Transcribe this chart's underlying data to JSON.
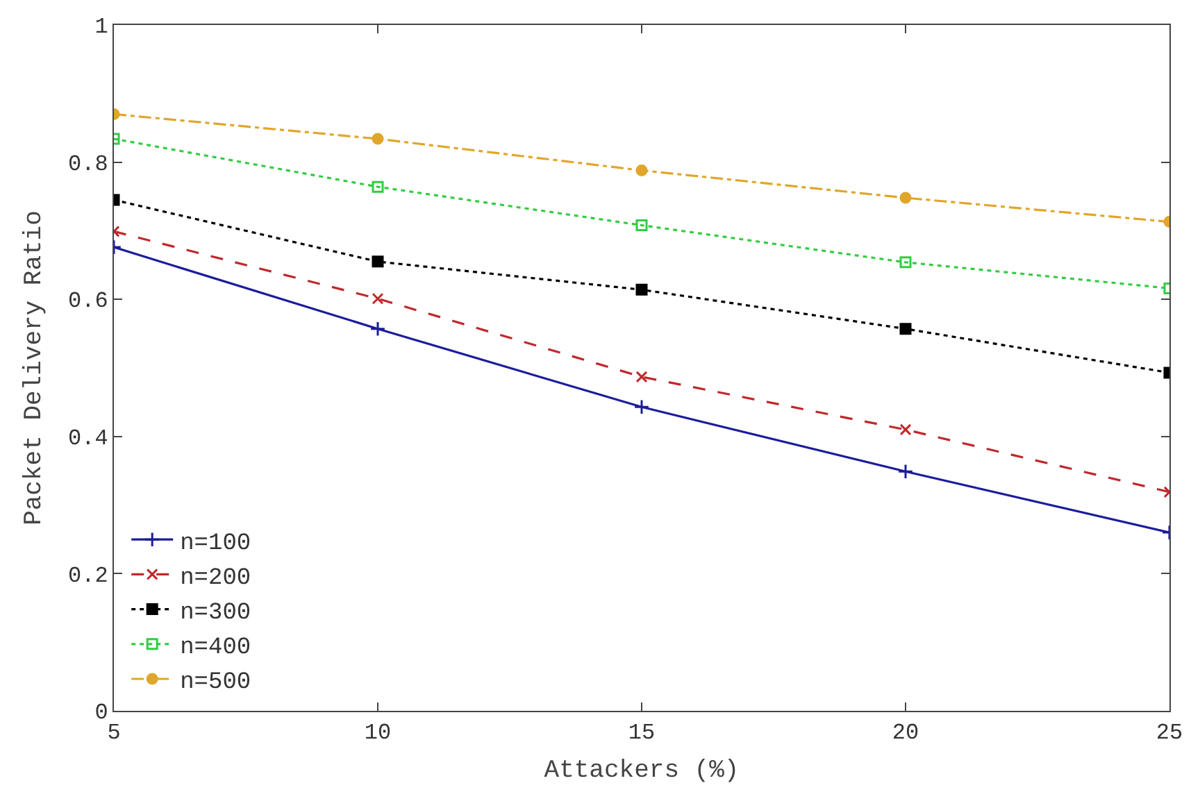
{
  "chart_data": {
    "type": "line",
    "xlabel": "Attackers (%)",
    "ylabel": "Packet Delivery Ratio",
    "x": [
      5,
      10,
      15,
      20,
      25
    ],
    "xlim": [
      5,
      25
    ],
    "xticks": [
      5,
      10,
      15,
      20,
      25
    ],
    "ylim": [
      0,
      1
    ],
    "yticks": [
      0,
      0.2,
      0.4,
      0.6,
      0.8,
      1
    ],
    "grid": false,
    "legend": "bottom left",
    "series": [
      {
        "name": "n=100",
        "color": "#1c1c9c",
        "marker": "cross",
        "line_style": "solid",
        "values": [
          0.676,
          0.557,
          0.443,
          0.349,
          0.26
        ]
      },
      {
        "name": "n=200",
        "color": "#c0282c",
        "marker": "x",
        "line_style": "dashed",
        "values": [
          0.699,
          0.601,
          0.487,
          0.41,
          0.319
        ]
      },
      {
        "name": "n=300",
        "color": "#000000",
        "marker": "square",
        "line_style": "dotted",
        "values": [
          0.745,
          0.655,
          0.614,
          0.557,
          0.493
        ]
      },
      {
        "name": "n=400",
        "color": "#33cc44",
        "marker": "square-open",
        "line_style": "dotted",
        "values": [
          0.834,
          0.764,
          0.708,
          0.654,
          0.616
        ]
      },
      {
        "name": "n=500",
        "color": "#e0a62a",
        "marker": "circle",
        "line_style": "dashdot",
        "values": [
          0.87,
          0.834,
          0.788,
          0.748,
          0.713
        ]
      }
    ]
  }
}
